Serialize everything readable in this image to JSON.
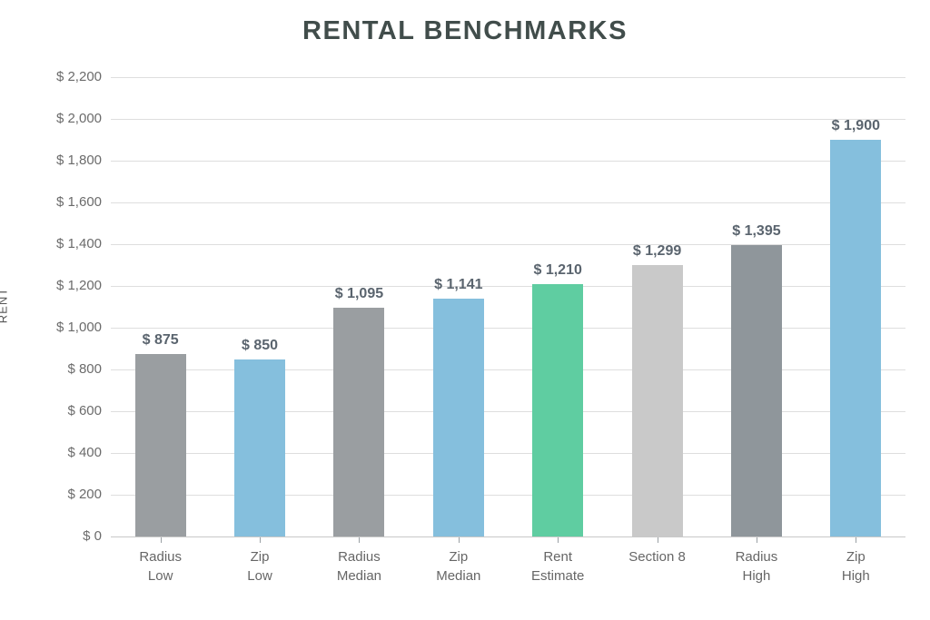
{
  "title": "RENTAL BENCHMARKS",
  "chart_data": {
    "type": "bar",
    "title": "RENTAL BENCHMARKS",
    "xlabel": "",
    "ylabel": "RENT",
    "ylim": [
      0,
      2200
    ],
    "grid": true,
    "legend": false,
    "categories": [
      "Radius\nLow",
      "Zip\nLow",
      "Radius\nMedian",
      "Zip\nMedian",
      "Rent\nEstimate",
      "Section 8",
      "Radius\nHigh",
      "Zip\nHigh"
    ],
    "values": [
      875,
      850,
      1095,
      1141,
      1210,
      1299,
      1395,
      1900
    ],
    "value_labels": [
      "$ 875",
      "$ 850",
      "$ 1,095",
      "$ 1,141",
      "$ 1,210",
      "$ 1,299",
      "$ 1,395",
      "$ 1,900"
    ],
    "bar_colors": [
      "#9a9ea1",
      "#85bfdd",
      "#9a9ea1",
      "#85bfdd",
      "#5fcda1",
      "#c9c9c9",
      "#8f969b",
      "#85bfdd"
    ],
    "y_ticks": [
      {
        "value": 0,
        "label": "$ 0"
      },
      {
        "value": 200,
        "label": "$ 200"
      },
      {
        "value": 400,
        "label": "$ 400"
      },
      {
        "value": 600,
        "label": "$ 600"
      },
      {
        "value": 800,
        "label": "$ 800"
      },
      {
        "value": 1000,
        "label": "$ 1,000"
      },
      {
        "value": 1200,
        "label": "$ 1,200"
      },
      {
        "value": 1400,
        "label": "$ 1,400"
      },
      {
        "value": 1600,
        "label": "$ 1,600"
      },
      {
        "value": 1800,
        "label": "$ 1,800"
      },
      {
        "value": 2000,
        "label": "$ 2,000"
      },
      {
        "value": 2200,
        "label": "$ 2,200"
      }
    ]
  },
  "colors": {
    "title": "#414d4b",
    "tick_label": "#6b6b6b",
    "value_label": "#5a646e",
    "gridline": "#dedede",
    "axis_line": "#c8c8c8",
    "bar_gray": "#9a9ea1",
    "bar_blue": "#85bfdd",
    "bar_green": "#5fcda1",
    "bar_light_gray": "#c9c9c9"
  }
}
